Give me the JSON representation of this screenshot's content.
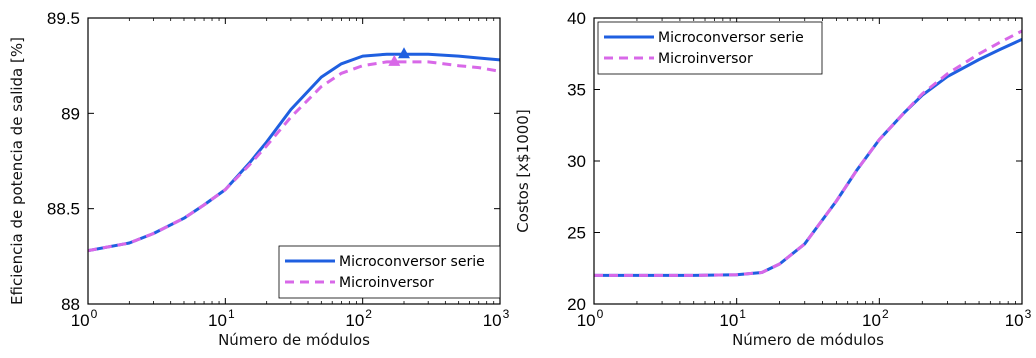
{
  "chart_data": [
    {
      "type": "line",
      "xscale": "log",
      "xlim": [
        1,
        1000
      ],
      "ylim": [
        88,
        89.5
      ],
      "xlabel": "Número de módulos",
      "ylabel": "Eficiencia de potencia de salida [%]",
      "xticks": [
        {
          "base": "10",
          "exp": "0"
        },
        {
          "base": "10",
          "exp": "1"
        },
        {
          "base": "10",
          "exp": "2"
        },
        {
          "base": "10",
          "exp": "3"
        }
      ],
      "yticks": [
        "88",
        "88.5",
        "89",
        "89.5"
      ],
      "ytick_values": [
        88,
        88.5,
        89,
        89.5
      ],
      "legend_position": "bottom-right",
      "grid": false,
      "series": [
        {
          "name": "Microconversor serie",
          "color": "#1f5fe0",
          "style": "solid",
          "marker": "triangle",
          "marker_point": [
            200,
            89.31
          ],
          "x": [
            1,
            2,
            3,
            5,
            7,
            10,
            15,
            20,
            30,
            50,
            70,
            100,
            150,
            200,
            300,
            500,
            700,
            1000
          ],
          "y": [
            88.28,
            88.32,
            88.37,
            88.45,
            88.52,
            88.6,
            88.74,
            88.85,
            89.02,
            89.19,
            89.26,
            89.3,
            89.31,
            89.31,
            89.31,
            89.3,
            89.29,
            89.28
          ]
        },
        {
          "name": "Microinversor",
          "color": "#d868e8",
          "style": "dashed",
          "marker": "triangle",
          "marker_point": [
            170,
            89.27
          ],
          "x": [
            1,
            2,
            3,
            5,
            7,
            10,
            15,
            20,
            30,
            50,
            70,
            100,
            150,
            200,
            300,
            500,
            700,
            1000
          ],
          "y": [
            88.28,
            88.32,
            88.37,
            88.45,
            88.52,
            88.6,
            88.73,
            88.83,
            88.98,
            89.14,
            89.21,
            89.25,
            89.27,
            89.27,
            89.27,
            89.25,
            89.24,
            89.22
          ]
        }
      ]
    },
    {
      "type": "line",
      "xscale": "log",
      "xlim": [
        1,
        1000
      ],
      "ylim": [
        20,
        40
      ],
      "xlabel": "Número de módulos",
      "ylabel": "Costos [x$1000]",
      "xticks": [
        {
          "base": "10",
          "exp": "0"
        },
        {
          "base": "10",
          "exp": "1"
        },
        {
          "base": "10",
          "exp": "2"
        },
        {
          "base": "10",
          "exp": "3"
        }
      ],
      "yticks": [
        "20",
        "25",
        "30",
        "35",
        "40"
      ],
      "ytick_values": [
        20,
        25,
        30,
        35,
        40
      ],
      "legend_position": "top-left",
      "grid": false,
      "series": [
        {
          "name": "Microconversor serie",
          "color": "#1f5fe0",
          "style": "solid",
          "x": [
            1,
            2,
            5,
            10,
            15,
            20,
            30,
            50,
            70,
            100,
            150,
            200,
            300,
            500,
            700,
            1000
          ],
          "y": [
            22.0,
            22.0,
            22.0,
            22.05,
            22.2,
            22.8,
            24.2,
            27.2,
            29.4,
            31.5,
            33.4,
            34.6,
            35.9,
            37.1,
            37.8,
            38.5
          ]
        },
        {
          "name": "Microinversor",
          "color": "#d868e8",
          "style": "dashed",
          "x": [
            1,
            2,
            5,
            10,
            15,
            20,
            30,
            50,
            70,
            100,
            150,
            200,
            300,
            500,
            700,
            1000
          ],
          "y": [
            22.0,
            22.0,
            22.0,
            22.05,
            22.2,
            22.8,
            24.2,
            27.2,
            29.4,
            31.5,
            33.4,
            34.7,
            36.1,
            37.5,
            38.3,
            39.1
          ]
        }
      ]
    }
  ]
}
